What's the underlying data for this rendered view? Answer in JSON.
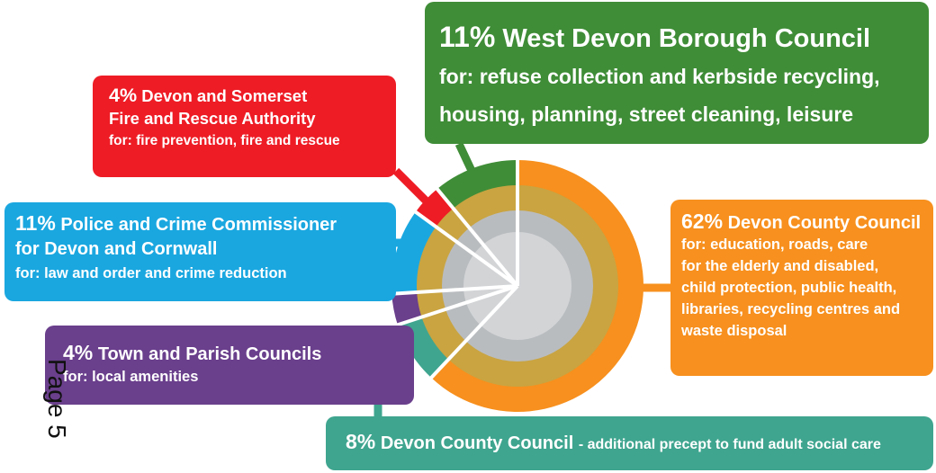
{
  "chart_data": {
    "type": "donut",
    "page_label": "Page 5",
    "segments": [
      {
        "label": "62%",
        "value": 62,
        "color": "#f7901e",
        "title": [
          "Devon County Council"
        ],
        "description": [
          "for: education, roads, care",
          "for the elderly and disabled,",
          "child protection, public health,",
          "libraries, recycling centres and",
          "waste disposal"
        ]
      },
      {
        "label": "8%",
        "value": 8,
        "color": "#3fa58f",
        "title": [
          "Devon County Council"
        ],
        "description": [
          "- additional precept to fund adult social care"
        ]
      },
      {
        "label": "4%",
        "value": 4,
        "color": "#6a3f8c",
        "title": [
          "Town and Parish Councils"
        ],
        "description": [
          "for: local amenities"
        ]
      },
      {
        "label": "11%",
        "value": 11,
        "color": "#1aa7e0",
        "title": [
          "Police and Crime Commissioner",
          "for Devon and Cornwall"
        ],
        "description": [
          "for: law and order and crime reduction"
        ]
      },
      {
        "label": "4%",
        "value": 4,
        "color": "#ee1c25",
        "title": [
          "Devon and Somerset",
          "Fire and Rescue Authority"
        ],
        "description": [
          "for: fire prevention, fire and rescue"
        ]
      },
      {
        "label": "11%",
        "value": 11,
        "color": "#3f8d37",
        "title": [
          "West Devon Borough Council"
        ],
        "description": [
          "for: refuse collection and kerbside recycling,",
          "housing, planning, street cleaning, leisure"
        ]
      }
    ]
  }
}
